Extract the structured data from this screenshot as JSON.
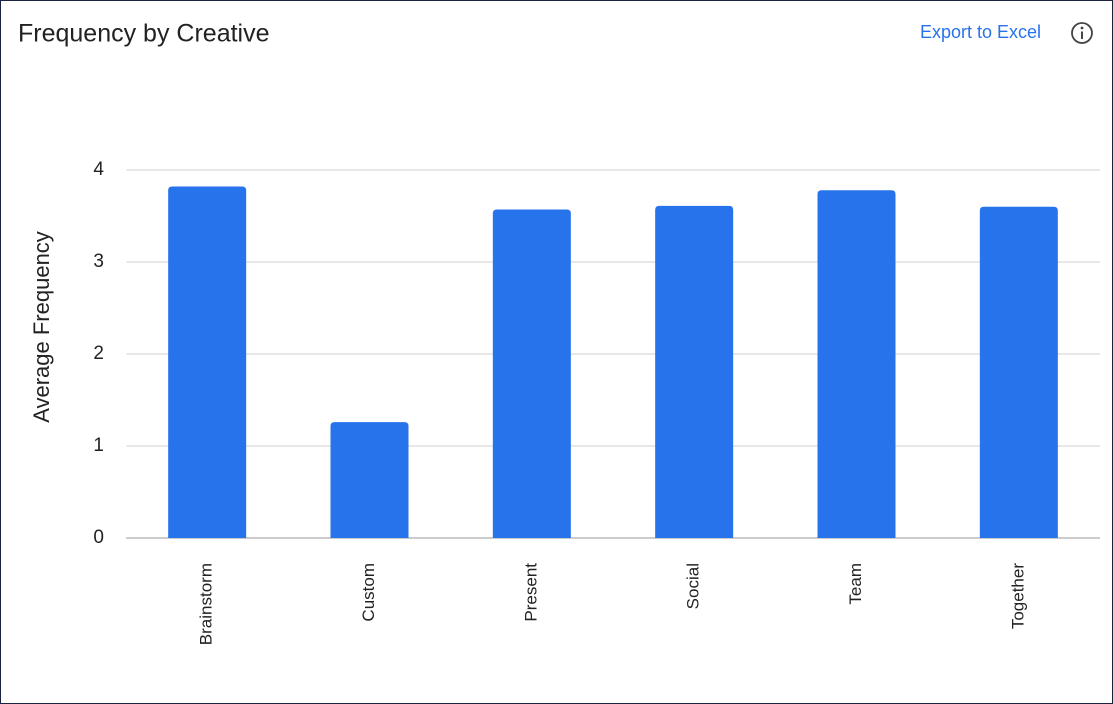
{
  "chart_data": {
    "type": "bar",
    "title": "Frequency by Creative",
    "export_label": "Export to Excel",
    "y_label": "Average Frequency",
    "categories": [
      "Brainstorm",
      "Custom",
      "Present",
      "Social",
      "Team",
      "Together"
    ],
    "values": [
      3.82,
      1.26,
      3.57,
      3.61,
      3.78,
      3.6
    ],
    "color": "#2673ec",
    "ylim": [
      0,
      4
    ],
    "yticks": [
      0,
      1,
      2,
      3,
      4
    ],
    "grid": true
  }
}
